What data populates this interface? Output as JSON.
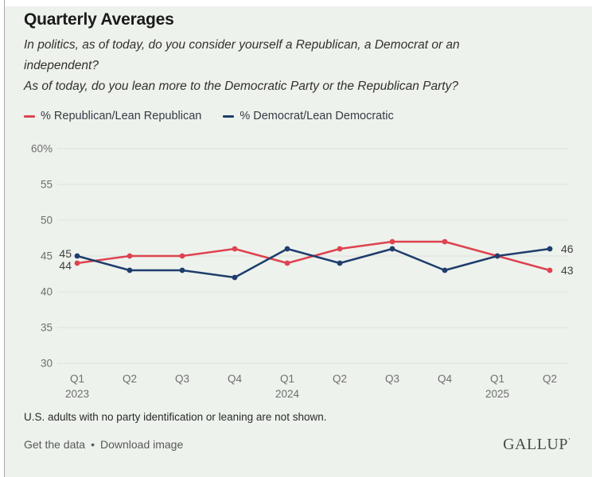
{
  "header": {
    "title": "Quarterly Averages",
    "question_primary": "In politics, as of today, do you consider yourself a Republican, a Democrat or an independent?",
    "question_secondary": "As of today, do you lean more to the Democratic Party or the Republican Party?"
  },
  "chart_data": {
    "type": "line",
    "title": "Quarterly Averages",
    "categories": [
      "Q1",
      "Q2",
      "Q3",
      "Q4",
      "Q1",
      "Q2",
      "Q3",
      "Q4",
      "Q1",
      "Q2"
    ],
    "category_years": {
      "0": "2023",
      "4": "2024",
      "8": "2025"
    },
    "series": [
      {
        "name": "% Republican/Lean Republican",
        "color": "#dd4350",
        "values": [
          44,
          45,
          45,
          46,
          44,
          46,
          47,
          47,
          45,
          43
        ]
      },
      {
        "name": "% Democrat/Lean Democratic",
        "color": "#1f3d6d",
        "values": [
          45,
          43,
          43,
          42,
          46,
          44,
          46,
          43,
          45,
          46
        ]
      }
    ],
    "ylim": [
      30,
      60
    ],
    "yticks": [
      60,
      55,
      50,
      45,
      40,
      35,
      30
    ],
    "ytick_top_suffix": "%",
    "grid": true,
    "legend_position": "top-left",
    "start_labels": true,
    "end_labels": true
  },
  "footer": {
    "note": "U.S. adults with no party identification or leaning are not shown.",
    "link_get_data": "Get the data",
    "link_separator": "•",
    "link_download": "Download image",
    "logo": "GALLUP",
    "logo_mark": "’"
  },
  "colors": {
    "background": "#edf2ec",
    "republican": "#dd4350",
    "democrat": "#1f3d6d",
    "gridline": "#dde3dd",
    "axis_text": "#6f6f6f",
    "data_label_text": "#404040"
  }
}
